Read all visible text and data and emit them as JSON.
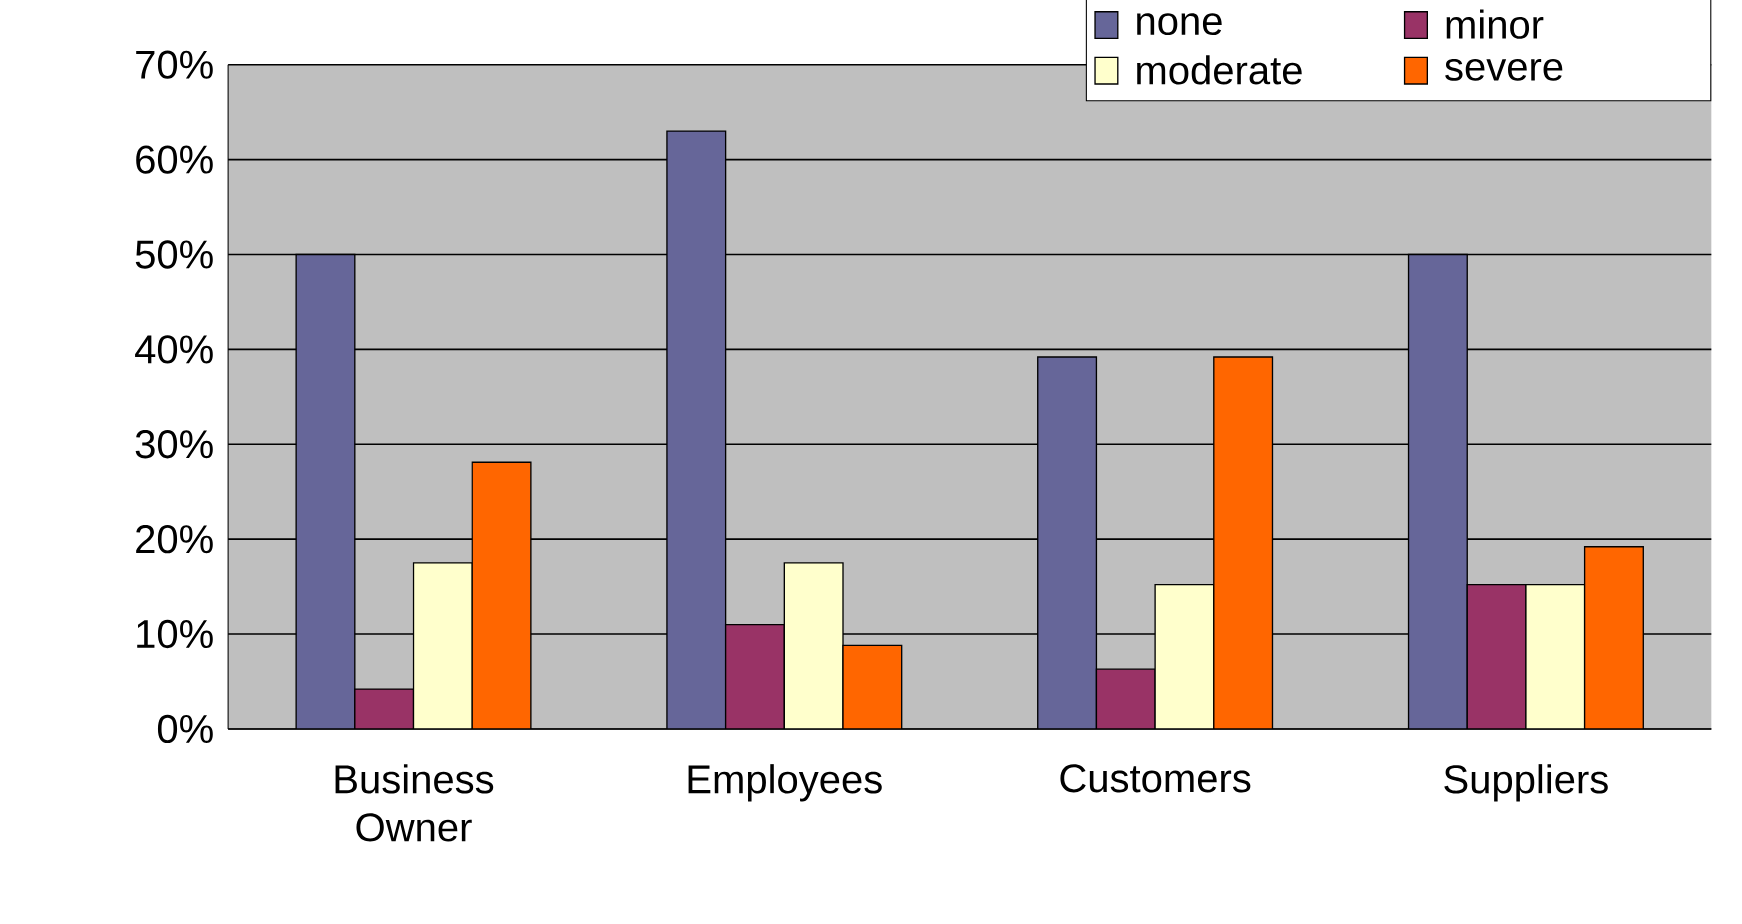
{
  "chart_data": {
    "type": "bar",
    "categories": [
      "Business Owner",
      "Employees",
      "Customers",
      "Suppliers"
    ],
    "series": [
      {
        "name": "none",
        "color": "#666699",
        "values": [
          50,
          63,
          39.2,
          50
        ]
      },
      {
        "name": "minor",
        "color": "#993366",
        "values": [
          4.2,
          11,
          6.3,
          15.2
        ]
      },
      {
        "name": "moderate",
        "color": "#ffffcc",
        "values": [
          17.5,
          17.5,
          15.2,
          15.2
        ]
      },
      {
        "name": "severe",
        "color": "#ff6600",
        "values": [
          28.1,
          8.8,
          39.2,
          19.2
        ]
      }
    ],
    "ylim": [
      0,
      70
    ],
    "yticks": [
      {
        "value": 0,
        "label": "0%"
      },
      {
        "value": 10,
        "label": "10%"
      },
      {
        "value": 20,
        "label": "20%"
      },
      {
        "value": 30,
        "label": "30%"
      },
      {
        "value": 40,
        "label": "40%"
      },
      {
        "value": 50,
        "label": "50%"
      },
      {
        "value": 60,
        "label": "60%"
      },
      {
        "value": 70,
        "label": "70%"
      }
    ],
    "grid": "y",
    "legend": "top right"
  }
}
